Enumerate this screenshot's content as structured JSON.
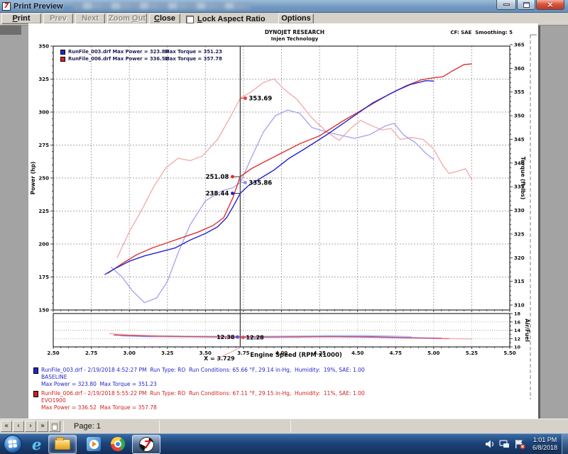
{
  "window": {
    "title": "Print Preview"
  },
  "toolbar": {
    "print": {
      "pre": "",
      "u": "P",
      "post": "rint"
    },
    "prev": {
      "pre": "Prev",
      "u": "",
      "post": ""
    },
    "next": {
      "pre": "Next",
      "u": "",
      "post": ""
    },
    "zoom_out": {
      "pre": "Zoom ",
      "u": "O",
      "post": "ut"
    },
    "close": {
      "pre": "",
      "u": "C",
      "post": "lose"
    },
    "lock": {
      "pre": "",
      "u": "L",
      "post": "ock Aspect Ratio"
    },
    "options": {
      "pre": "Options",
      "u": "",
      "post": ""
    }
  },
  "statusbar": {
    "nav": [
      "«",
      "‹",
      "›",
      "»"
    ],
    "page_label": "Page: 1"
  },
  "taskbar": {
    "time": "1:01 PM",
    "date": "6/8/2018"
  },
  "colors": {
    "power_baseline": "#2424cc",
    "power_evo1900": "#dd3333",
    "torque_baseline": "#a2a2ee",
    "torque_evo1900": "#f2a8a8"
  },
  "page": {
    "header_line1": "DYNOJET RESEARCH",
    "header_line2": "Injen Technology",
    "header_right": "CF: SAE  Smoothing: 5",
    "legend": [
      {
        "file": "RunFile_003.drf Max Power = 323.80",
        "torque": "Max Torque = 351.23"
      },
      {
        "file": "RunFile_006.drf Max Power = 336.52",
        "torque": "Max Torque = 357.78"
      }
    ],
    "footer_runs": [
      {
        "name": "baseline",
        "line1": "RunFile_003.drf - 2/19/2018 4:52:27 PM  Run Type: RO  Run Conditions: 65.66 °F, 29.14 in-Hg,  Humidity:  19%, SAE: 1.00",
        "line2": "BASELINE",
        "line3": "Max Power = 323.80  Max Torque = 351.23"
      },
      {
        "name": "evo1900",
        "line1": "RunFile_006.drf - 2/19/2018 5:55:22 PM  Run Type: RO  Run Conditions: 67.11 °F, 29.15 in-Hg,  Humidity:  11%, SAE: 1.00",
        "line2": "EVO1900",
        "line3": "Max Power = 336.52  Max Torque = 357.78"
      }
    ]
  },
  "chart_data": [
    {
      "type": "line",
      "x_axis": {
        "label": "Engine Speed (RPM x1000)",
        "ticks": [
          "2.50",
          "2.75",
          "3.00",
          "3.25",
          "3.50",
          "3.75",
          "4.00",
          "4.25",
          "4.50",
          "4.75",
          "5.00",
          "5.25",
          "5.50"
        ]
      },
      "left_axis": {
        "label": "Power (hp)",
        "range": [
          150,
          350
        ],
        "ticks": [
          "150",
          "175",
          "200",
          "225",
          "250",
          "275",
          "300",
          "325",
          "350"
        ]
      },
      "right_axis": {
        "label": "Torque (ft-lbs)",
        "range": [
          310,
          365
        ],
        "ticks": [
          "310",
          "315",
          "320",
          "325",
          "330",
          "335",
          "340",
          "345",
          "350",
          "355",
          "360",
          "365"
        ]
      },
      "cursor": {
        "x": 3.729,
        "label": "X = 3.729"
      },
      "series": [
        {
          "name": "torque-evo1900",
          "axis": "torque",
          "color": "#f2a8a8",
          "width": 1.3,
          "points": [
            [
              2.92,
              320
            ],
            [
              3.0,
              325.5
            ],
            [
              3.08,
              330
            ],
            [
              3.16,
              335
            ],
            [
              3.24,
              339
            ],
            [
              3.32,
              341
            ],
            [
              3.4,
              340.5
            ],
            [
              3.48,
              341.5
            ],
            [
              3.58,
              345
            ],
            [
              3.66,
              349.5
            ],
            [
              3.729,
              353.69
            ],
            [
              3.8,
              355
            ],
            [
              3.88,
              357
            ],
            [
              3.95,
              357.78
            ],
            [
              4.02,
              355.5
            ],
            [
              4.1,
              353.5
            ],
            [
              4.2,
              349.5
            ],
            [
              4.3,
              346.5
            ],
            [
              4.38,
              344.8
            ],
            [
              4.46,
              347.5
            ],
            [
              4.52,
              349
            ],
            [
              4.6,
              347.8
            ],
            [
              4.66,
              347
            ],
            [
              4.72,
              347.3
            ],
            [
              4.78,
              345
            ],
            [
              4.86,
              345.4
            ],
            [
              4.93,
              345
            ],
            [
              5.0,
              343
            ],
            [
              5.06,
              339.5
            ],
            [
              5.1,
              337.8
            ],
            [
              5.16,
              338.3
            ],
            [
              5.21,
              338.8
            ],
            [
              5.25,
              336.5
            ]
          ]
        },
        {
          "name": "torque-baseline",
          "axis": "torque",
          "color": "#a2a2ee",
          "width": 1.3,
          "points": [
            [
              2.88,
              318
            ],
            [
              2.95,
              316
            ],
            [
              3.02,
              313
            ],
            [
              3.1,
              310.5
            ],
            [
              3.18,
              311.5
            ],
            [
              3.25,
              315
            ],
            [
              3.32,
              321
            ],
            [
              3.4,
              327
            ],
            [
              3.5,
              332
            ],
            [
              3.6,
              334
            ],
            [
              3.68,
              334.8
            ],
            [
              3.729,
              335.86
            ],
            [
              3.8,
              341
            ],
            [
              3.88,
              346.5
            ],
            [
              3.96,
              350
            ],
            [
              4.04,
              351.2
            ],
            [
              4.12,
              350.5
            ],
            [
              4.2,
              347.5
            ],
            [
              4.3,
              346.5
            ],
            [
              4.4,
              345.8
            ],
            [
              4.48,
              345.2
            ],
            [
              4.58,
              346
            ],
            [
              4.68,
              347.8
            ],
            [
              4.74,
              348.4
            ],
            [
              4.8,
              346
            ],
            [
              4.88,
              344.3
            ],
            [
              4.95,
              342
            ],
            [
              5.0,
              340.8
            ]
          ]
        },
        {
          "name": "power-evo1900",
          "axis": "power",
          "color": "#dd3333",
          "width": 1.4,
          "points": [
            [
              2.86,
              178
            ],
            [
              2.95,
              185
            ],
            [
              3.05,
              192
            ],
            [
              3.15,
              197
            ],
            [
              3.25,
              201
            ],
            [
              3.35,
              205
            ],
            [
              3.45,
              209
            ],
            [
              3.55,
              214
            ],
            [
              3.62,
              220
            ],
            [
              3.68,
              235
            ],
            [
              3.729,
              251.08
            ],
            [
              3.8,
              257
            ],
            [
              3.9,
              263
            ],
            [
              4.0,
              269
            ],
            [
              4.12,
              276
            ],
            [
              4.25,
              282
            ],
            [
              4.4,
              293
            ],
            [
              4.55,
              303
            ],
            [
              4.7,
              313
            ],
            [
              4.82,
              320
            ],
            [
              4.92,
              324.5
            ],
            [
              5.0,
              326
            ],
            [
              5.06,
              326.8
            ],
            [
              5.12,
              331
            ],
            [
              5.2,
              336
            ],
            [
              5.25,
              336.52
            ]
          ]
        },
        {
          "name": "power-baseline",
          "axis": "power",
          "color": "#2424cc",
          "width": 1.4,
          "points": [
            [
              2.84,
              177
            ],
            [
              2.9,
              181
            ],
            [
              3.0,
              187
            ],
            [
              3.1,
              191
            ],
            [
              3.2,
              194
            ],
            [
              3.3,
              197
            ],
            [
              3.4,
              203
            ],
            [
              3.5,
              208
            ],
            [
              3.58,
              213
            ],
            [
              3.64,
              220
            ],
            [
              3.68,
              228
            ],
            [
              3.729,
              238.44
            ],
            [
              3.78,
              244
            ],
            [
              3.85,
              249
            ],
            [
              3.95,
              256
            ],
            [
              4.05,
              265
            ],
            [
              4.15,
              272
            ],
            [
              4.3,
              283
            ],
            [
              4.45,
              295
            ],
            [
              4.6,
              307
            ],
            [
              4.75,
              316
            ],
            [
              4.85,
              321
            ],
            [
              4.95,
              323.8
            ],
            [
              5.0,
              323.5
            ]
          ]
        }
      ],
      "annotations": [
        {
          "text": "353.69",
          "axis": "torque",
          "value": 353.69,
          "side": "right",
          "color": "#ee3333"
        },
        {
          "text": "251.08",
          "axis": "power",
          "value": 251.08,
          "side": "left",
          "color": "#ee2222"
        },
        {
          "text": "335.86",
          "axis": "torque",
          "value": 335.86,
          "side": "right",
          "color": "#9090e8"
        },
        {
          "text": "238.44",
          "axis": "power",
          "value": 238.44,
          "side": "left",
          "color": "#2424cc"
        }
      ]
    },
    {
      "type": "line",
      "right_axis": {
        "label": "Air/Fuel",
        "range": [
          10,
          18
        ],
        "ticks": [
          "10",
          "12",
          "14",
          "16",
          "18"
        ]
      },
      "series": [
        {
          "name": "afr-baseline-band",
          "axis": "afr",
          "color": "#b8c2f0",
          "width": 3,
          "points": [
            [
              2.95,
              12.75
            ],
            [
              3.1,
              12.6
            ],
            [
              3.3,
              12.5
            ],
            [
              3.5,
              12.45
            ],
            [
              3.729,
              12.4
            ],
            [
              3.9,
              12.42
            ],
            [
              4.1,
              12.5
            ],
            [
              4.3,
              12.6
            ],
            [
              4.5,
              12.62
            ],
            [
              4.7,
              12.5
            ],
            [
              4.85,
              12.3
            ]
          ]
        },
        {
          "name": "afr-evo1900-band",
          "axis": "afr",
          "color": "#f4b0b0",
          "width": 1.5,
          "points": [
            [
              2.87,
              13.2
            ],
            [
              3.0,
              12.85
            ],
            [
              3.2,
              12.6
            ],
            [
              3.4,
              12.5
            ],
            [
              3.6,
              12.4
            ],
            [
              3.729,
              12.3
            ],
            [
              4.0,
              12.35
            ],
            [
              4.3,
              12.45
            ],
            [
              4.6,
              12.35
            ],
            [
              4.8,
              12.2
            ],
            [
              5.0,
              12.05
            ],
            [
              5.15,
              11.95
            ],
            [
              5.25,
              11.9
            ]
          ]
        },
        {
          "name": "afr-baseline",
          "axis": "afr",
          "color": "#5555dd",
          "width": 0.9,
          "points": [
            [
              2.9,
              12.8
            ],
            [
              3.1,
              12.55
            ],
            [
              3.4,
              12.45
            ],
            [
              3.729,
              12.38
            ],
            [
              4.0,
              12.4
            ],
            [
              4.3,
              12.5
            ],
            [
              4.6,
              12.45
            ],
            [
              4.8,
              12.25
            ],
            [
              5.0,
              12.15
            ],
            [
              5.05,
              12.1
            ]
          ]
        },
        {
          "name": "afr-evo1900",
          "axis": "afr",
          "color": "#ee4444",
          "width": 0.9,
          "points": [
            [
              2.9,
              12.9
            ],
            [
              3.2,
              12.55
            ],
            [
              3.5,
              12.42
            ],
            [
              3.729,
              12.28
            ],
            [
              4.0,
              12.32
            ],
            [
              4.3,
              12.4
            ],
            [
              4.6,
              12.3
            ],
            [
              4.9,
              12.1
            ],
            [
              5.1,
              12.0
            ]
          ]
        }
      ],
      "annotations": [
        {
          "text": "12.38",
          "value": 12.38,
          "side": "left",
          "color": "#5555dd"
        },
        {
          "text": "12.28",
          "value": 12.28,
          "side": "right",
          "color": "#ee4444"
        }
      ]
    }
  ]
}
